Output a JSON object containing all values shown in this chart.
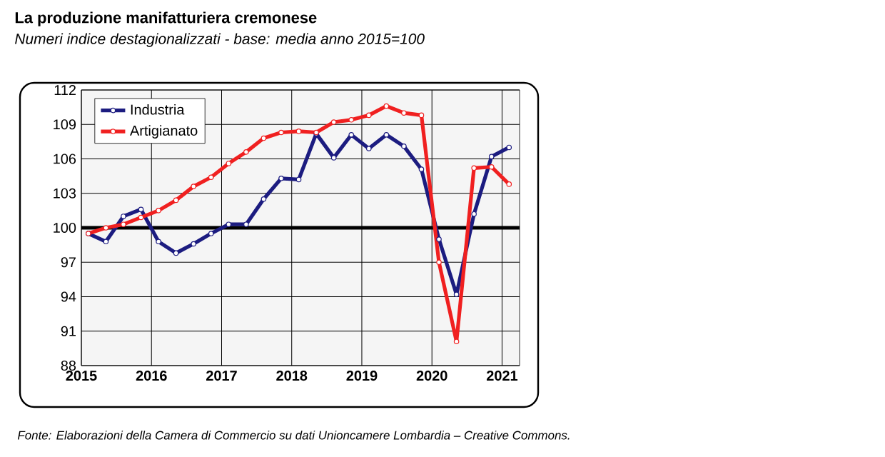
{
  "chart_data": {
    "type": "line",
    "title": "La produzione manifatturiera cremonese",
    "subtitle": "Numeri indice destagionalizzati - base: media anno 2015=100",
    "annotations": [
      "Fonte: Elaborazioni della Camera di Commercio su dati Unioncamere Lombardia – Creative Commons."
    ],
    "x": [
      2015.1,
      2015.35,
      2015.6,
      2015.85,
      2016.1,
      2016.35,
      2016.6,
      2016.85,
      2017.1,
      2017.35,
      2017.6,
      2017.85,
      2018.1,
      2018.35,
      2018.6,
      2018.85,
      2019.1,
      2019.35,
      2019.6,
      2019.85,
      2020.1,
      2020.35,
      2020.6,
      2020.85,
      2021.1
    ],
    "series": [
      {
        "name": "Industria",
        "color": "#1c1c80",
        "values": [
          99.5,
          98.8,
          101.0,
          101.6,
          98.8,
          97.8,
          98.6,
          99.5,
          100.3,
          100.3,
          102.5,
          104.3,
          104.2,
          108.2,
          106.1,
          108.1,
          106.9,
          108.1,
          107.1,
          105.1,
          99.0,
          94.2,
          101.2,
          106.2,
          107.0
        ]
      },
      {
        "name": "Artigianato",
        "color": "#f02020",
        "values": [
          99.5,
          100.0,
          100.3,
          100.9,
          101.5,
          102.4,
          103.6,
          104.4,
          105.6,
          106.6,
          107.8,
          108.3,
          108.4,
          108.3,
          109.2,
          109.4,
          109.8,
          110.6,
          110.0,
          109.8,
          97.0,
          90.1,
          105.2,
          105.3,
          103.8
        ]
      }
    ],
    "xlim": [
      2015,
      2021.25
    ],
    "xticks": [
      2015,
      2016,
      2017,
      2018,
      2019,
      2020,
      2021
    ],
    "ylim": [
      88,
      112
    ],
    "yticks": [
      88,
      91,
      94,
      97,
      100,
      103,
      106,
      109,
      112
    ],
    "ref_lines": [
      {
        "axis": "y",
        "value": 100,
        "color": "#000000"
      }
    ],
    "grid": true,
    "legend": "top left",
    "marker": "circle",
    "line_style": "solid"
  }
}
